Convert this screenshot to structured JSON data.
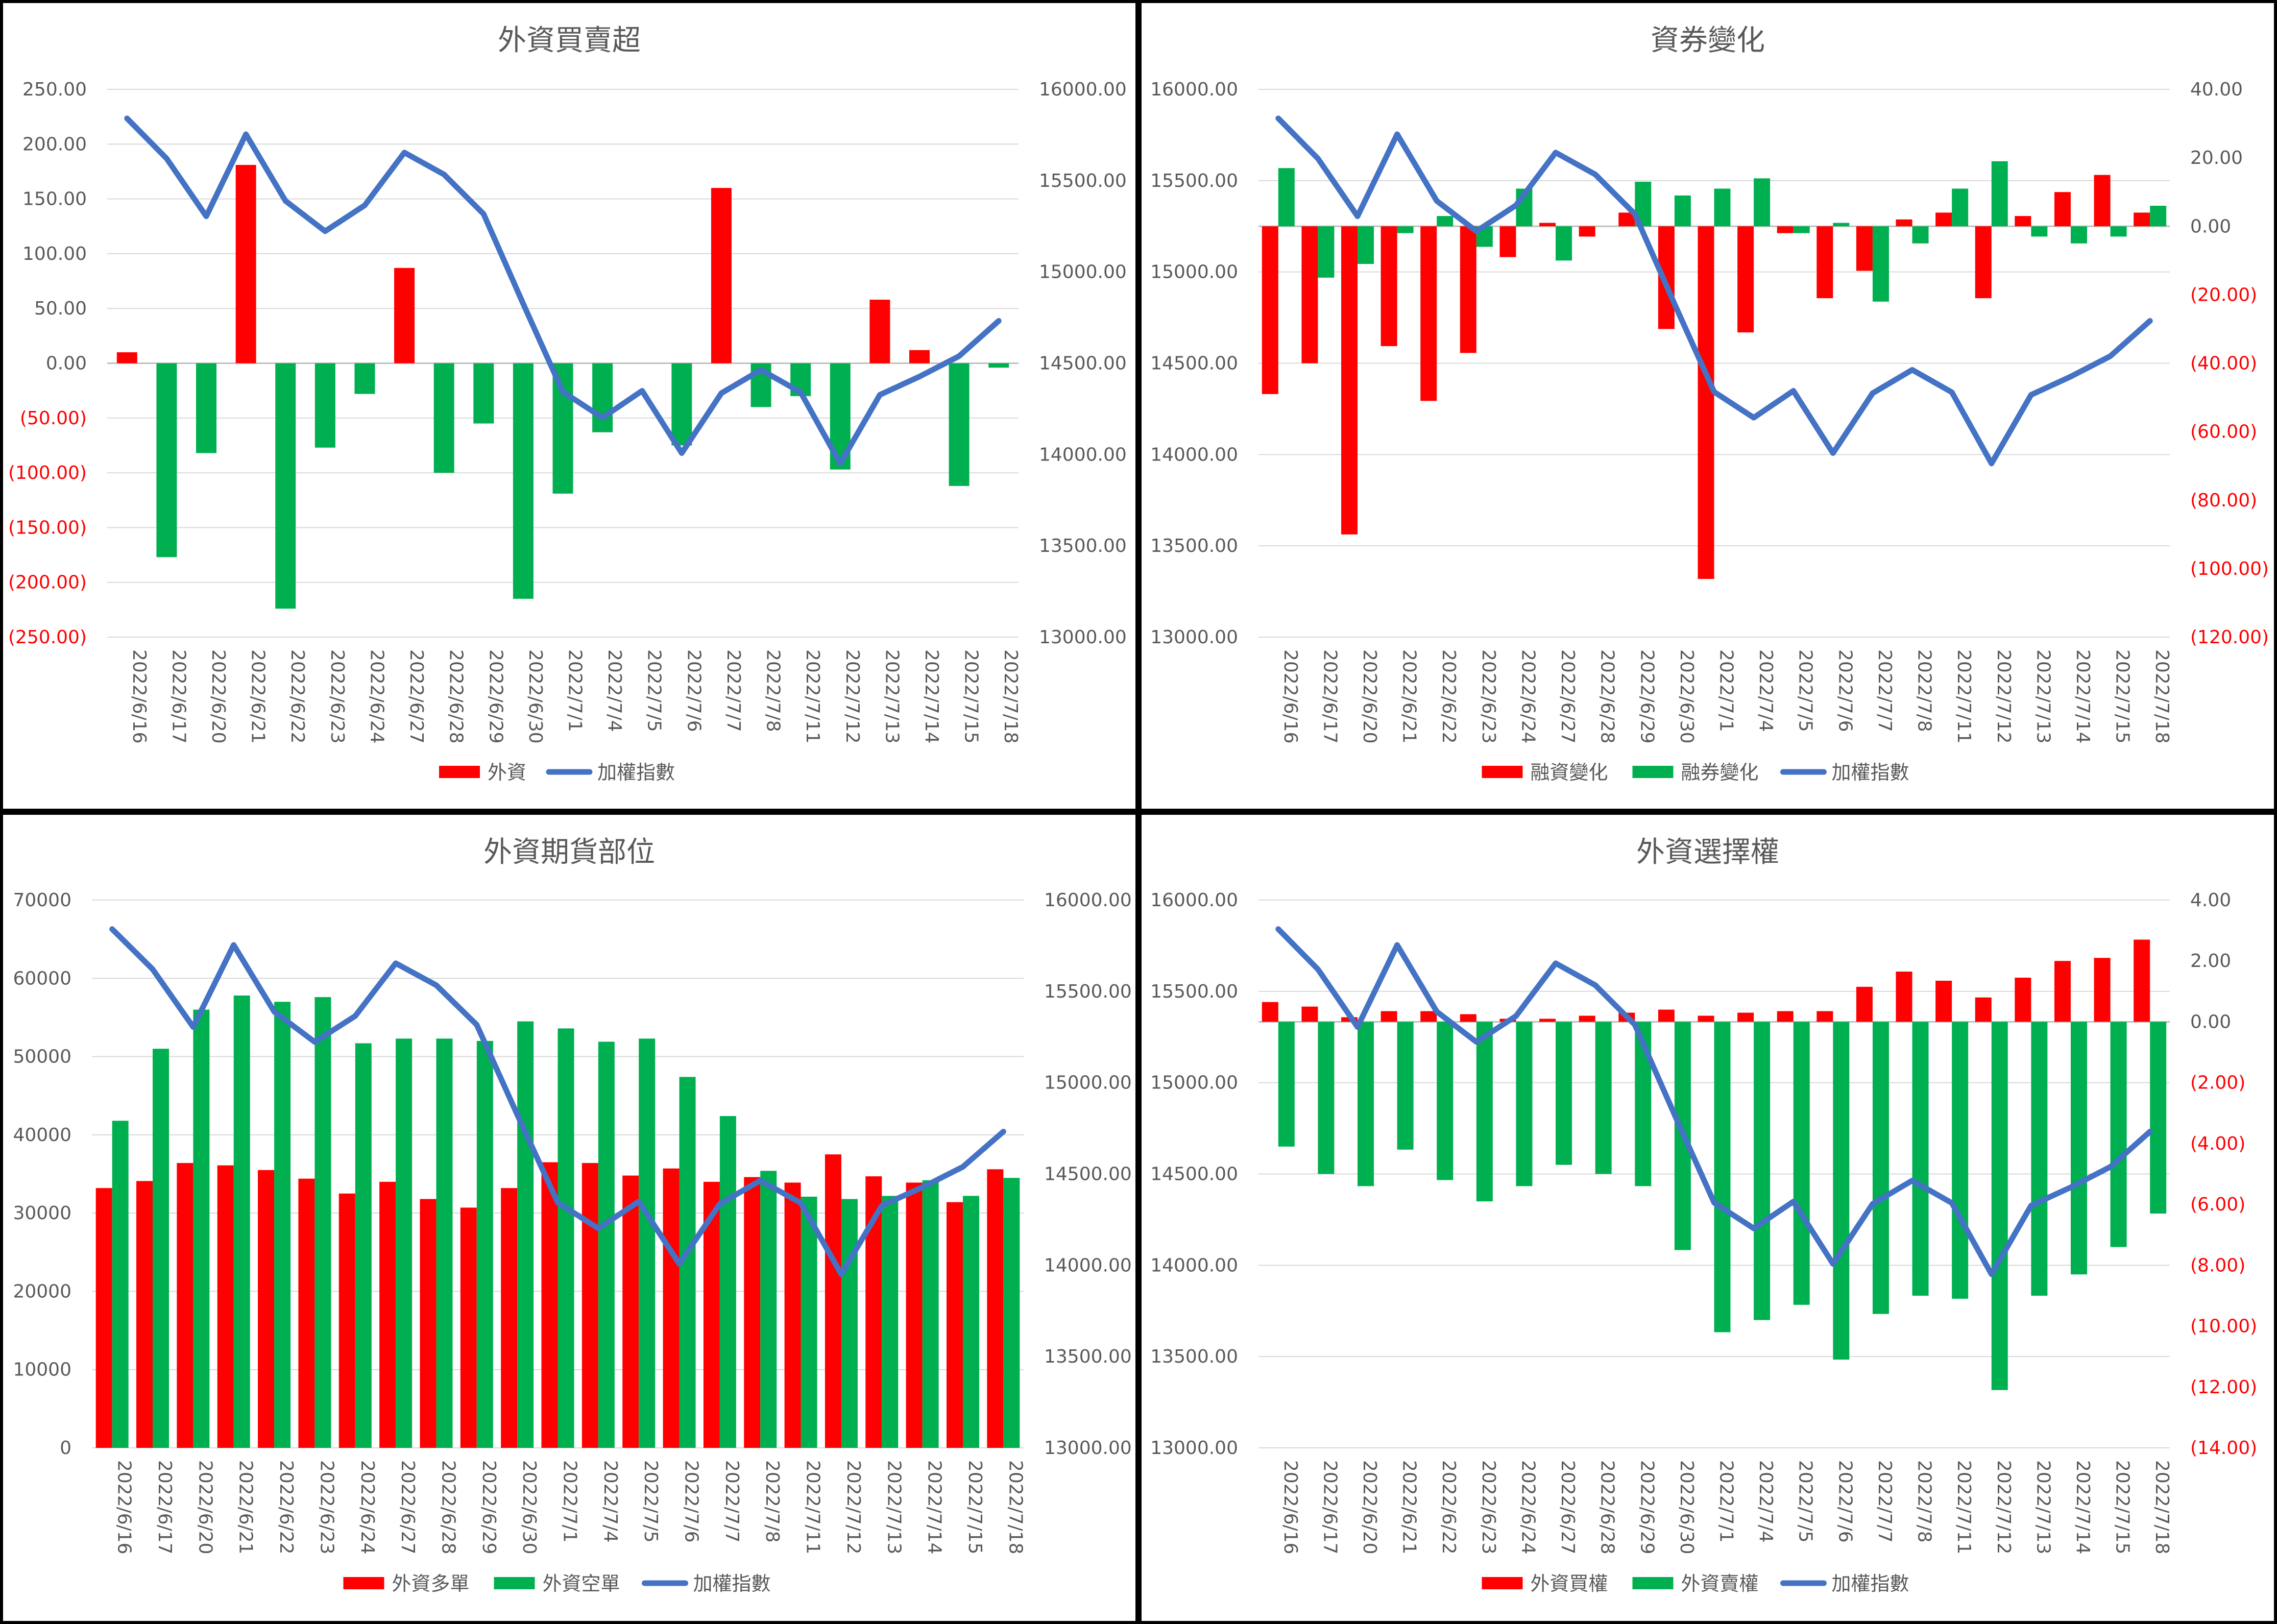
{
  "colors": {
    "red": "#ff0000",
    "green": "#00b050",
    "blue": "#4472c4",
    "negative_text": "#ff0000",
    "text": "#595959"
  },
  "dates": [
    "2022/6/16",
    "2022/6/17",
    "2022/6/20",
    "2022/6/21",
    "2022/6/22",
    "2022/6/23",
    "2022/6/24",
    "2022/6/27",
    "2022/6/28",
    "2022/6/29",
    "2022/6/30",
    "2022/7/1",
    "2022/7/4",
    "2022/7/5",
    "2022/7/6",
    "2022/7/7",
    "2022/7/8",
    "2022/7/11",
    "2022/7/12",
    "2022/7/13",
    "2022/7/14",
    "2022/7/15",
    "2022/7/18"
  ],
  "chart_data": [
    {
      "id": "p1",
      "type": "bar",
      "title": "外資買賣超",
      "left_axis": {
        "min": -250,
        "max": 250,
        "step": 50,
        "labels": [
          "250.00",
          "200.00",
          "150.00",
          "100.00",
          "50.00",
          "0.00",
          "(50.00)",
          "(100.00)",
          "(150.00)",
          "(200.00)",
          "(250.00)"
        ]
      },
      "right_axis": {
        "min": 13000,
        "max": 16000,
        "step": 500,
        "labels": [
          "16000.00",
          "15500.00",
          "15000.00",
          "14500.00",
          "14000.00",
          "13500.00",
          "13000.00"
        ]
      },
      "bar_series": [
        {
          "name": "外資",
          "color": "red",
          "sign_colored": true,
          "values": [
            10,
            -177,
            -82,
            181,
            -224,
            -77,
            -28,
            87,
            -100,
            -55,
            -215,
            -119,
            -63,
            0,
            -75,
            160,
            -40,
            -30,
            -97,
            58,
            12,
            -112,
            -4
          ]
        }
      ],
      "line_series": {
        "name": "加權指數",
        "values": [
          15841,
          15621,
          15305,
          15754,
          15389,
          15223,
          15365,
          15654,
          15534,
          15317,
          14825,
          14343,
          14202,
          14349,
          14008,
          14336,
          14464,
          14341,
          13951,
          14327,
          14427,
          14539,
          14732
        ]
      },
      "legend": [
        {
          "label": "外資",
          "kind": "bar",
          "color": "red"
        },
        {
          "label": "加權指數",
          "kind": "line",
          "color": "blue"
        }
      ]
    },
    {
      "id": "p2",
      "type": "bar",
      "title": "資券變化",
      "left_axis": {
        "min": 13000,
        "max": 16000,
        "step": 500,
        "labels": [
          "16000.00",
          "15500.00",
          "15000.00",
          "14500.00",
          "14000.00",
          "13500.00",
          "13000.00"
        ]
      },
      "right_axis": {
        "min": -120,
        "max": 40,
        "step": 20,
        "labels": [
          "40.00",
          "20.00",
          "0.00",
          "(20.00)",
          "(40.00)",
          "(60.00)",
          "(80.00)",
          "(100.00)",
          "(120.00)"
        ]
      },
      "bar_series": [
        {
          "name": "融資變化",
          "color": "red",
          "values": [
            -49,
            -40,
            -90,
            -35,
            -51,
            -37,
            -9,
            1,
            -3,
            4,
            -30,
            -103,
            -31,
            -2,
            -21,
            -13,
            2,
            4,
            -21,
            3,
            10,
            15,
            4
          ]
        },
        {
          "name": "融券變化",
          "color": "green",
          "values": [
            17,
            -15,
            -11,
            -2,
            3,
            -6,
            11,
            -10,
            0,
            13,
            9,
            11,
            14,
            -2,
            1,
            -22,
            -5,
            11,
            19,
            -3,
            -5,
            -3,
            6
          ]
        }
      ],
      "line_series": {
        "name": "加權指數",
        "values": [
          15841,
          15621,
          15305,
          15754,
          15389,
          15223,
          15365,
          15654,
          15534,
          15317,
          14825,
          14343,
          14202,
          14349,
          14008,
          14336,
          14464,
          14341,
          13951,
          14327,
          14427,
          14539,
          14732
        ]
      },
      "legend": [
        {
          "label": "融資變化",
          "kind": "bar",
          "color": "red"
        },
        {
          "label": "融券變化",
          "kind": "bar",
          "color": "green"
        },
        {
          "label": "加權指數",
          "kind": "line",
          "color": "blue"
        }
      ]
    },
    {
      "id": "p3",
      "type": "bar",
      "title": "外資期貨部位",
      "left_axis": {
        "min": 0,
        "max": 70000,
        "step": 10000,
        "labels": [
          "70000",
          "60000",
          "50000",
          "40000",
          "30000",
          "20000",
          "10000",
          "0"
        ]
      },
      "right_axis": {
        "min": 13000,
        "max": 16000,
        "step": 500,
        "labels": [
          "16000.00",
          "15500.00",
          "15000.00",
          "14500.00",
          "14000.00",
          "13500.00",
          "13000.00"
        ]
      },
      "bar_series": [
        {
          "name": "外資多單",
          "color": "red",
          "values": [
            33200,
            34100,
            36400,
            36100,
            35500,
            34400,
            32500,
            34000,
            31800,
            30700,
            33200,
            36500,
            36400,
            34800,
            35700,
            34000,
            34600,
            33900,
            37500,
            34700,
            33900,
            31400,
            35600
          ]
        },
        {
          "name": "外資空單",
          "color": "green",
          "values": [
            41800,
            51000,
            56000,
            57800,
            57000,
            57600,
            51700,
            52300,
            52300,
            52000,
            54500,
            53600,
            51900,
            52300,
            47400,
            42400,
            35400,
            32100,
            31800,
            32200,
            34200,
            32200,
            34500
          ]
        }
      ],
      "line_series": {
        "name": "加權指數",
        "values": [
          15841,
          15621,
          15305,
          15754,
          15389,
          15223,
          15365,
          15654,
          15534,
          15317,
          14825,
          14343,
          14202,
          14349,
          14008,
          14336,
          14464,
          14341,
          13951,
          14327,
          14427,
          14539,
          14732
        ]
      },
      "legend": [
        {
          "label": "外資多單",
          "kind": "bar",
          "color": "red"
        },
        {
          "label": "外資空單",
          "kind": "bar",
          "color": "green"
        },
        {
          "label": "加權指數",
          "kind": "line",
          "color": "blue"
        }
      ]
    },
    {
      "id": "p4",
      "type": "bar",
      "title": "外資選擇權",
      "left_axis": {
        "min": 13000,
        "max": 16000,
        "step": 500,
        "labels": [
          "16000.00",
          "15500.00",
          "15000.00",
          "14500.00",
          "14000.00",
          "13500.00",
          "13000.00"
        ]
      },
      "right_axis": {
        "min": -14,
        "max": 4,
        "step": 2,
        "labels": [
          "4.00",
          "2.00",
          "0.00",
          "(2.00)",
          "(4.00)",
          "(6.00)",
          "(8.00)",
          "(10.00)",
          "(12.00)",
          "(14.00)"
        ]
      },
      "bar_series": [
        {
          "name": "外資買權",
          "color": "red",
          "values": [
            0.65,
            0.5,
            0.15,
            0.35,
            0.35,
            0.25,
            0.1,
            0.1,
            0.2,
            0.3,
            0.4,
            0.2,
            0.3,
            0.35,
            0.35,
            1.15,
            1.65,
            1.35,
            0.8,
            1.45,
            2.0,
            2.1,
            2.7
          ]
        },
        {
          "name": "外資賣權",
          "color": "green",
          "values": [
            -4.1,
            -5.0,
            -5.4,
            -4.2,
            -5.2,
            -5.9,
            -5.4,
            -4.7,
            -5.0,
            -5.4,
            -7.5,
            -10.2,
            -9.8,
            -9.3,
            -11.1,
            -9.6,
            -9.0,
            -9.1,
            -12.1,
            -9.0,
            -8.3,
            -7.4,
            -6.3
          ]
        }
      ],
      "line_series": {
        "name": "加權指數",
        "values": [
          15841,
          15621,
          15305,
          15754,
          15389,
          15223,
          15365,
          15654,
          15534,
          15317,
          14825,
          14343,
          14202,
          14349,
          14008,
          14336,
          14464,
          14341,
          13951,
          14327,
          14427,
          14539,
          14732
        ]
      },
      "legend": [
        {
          "label": "外資買權",
          "kind": "bar",
          "color": "red"
        },
        {
          "label": "外資賣權",
          "kind": "bar",
          "color": "green"
        },
        {
          "label": "加權指數",
          "kind": "line",
          "color": "blue"
        }
      ]
    }
  ]
}
